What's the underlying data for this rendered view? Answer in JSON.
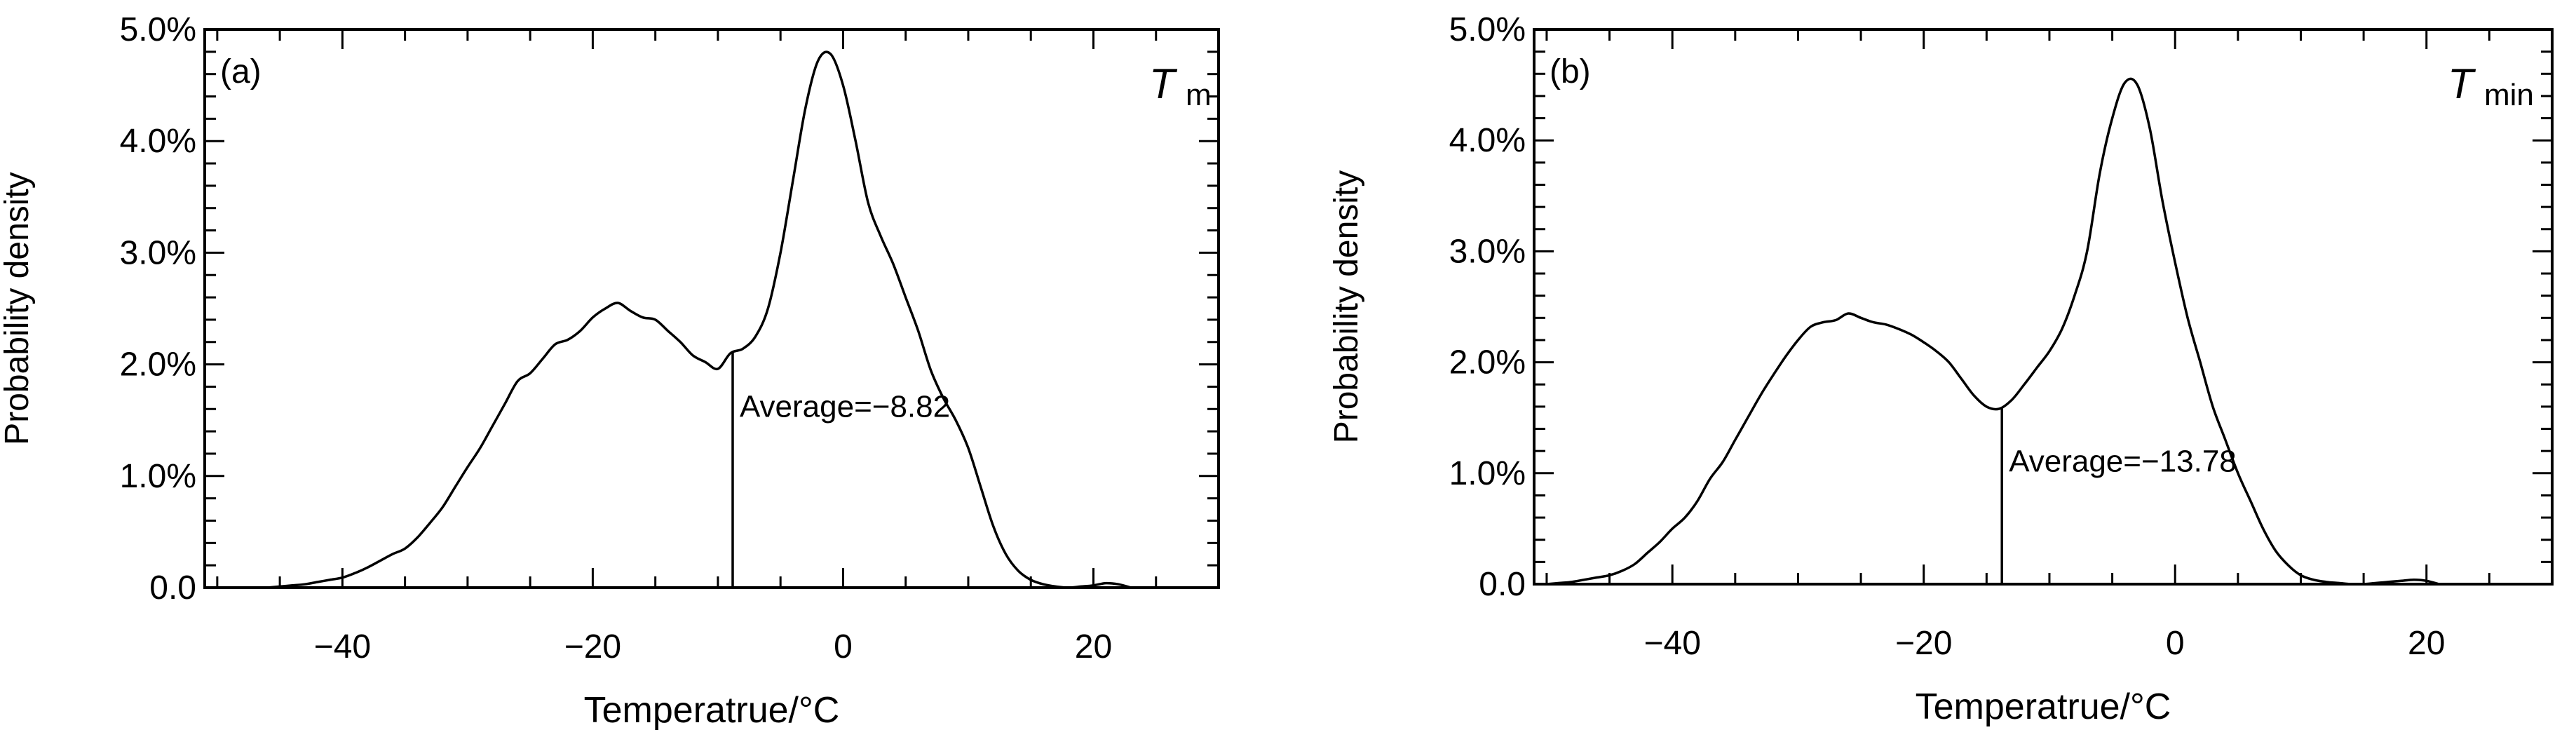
{
  "chart_data": [
    {
      "type": "line",
      "panel_label": "(a)",
      "symbol": "T",
      "symbol_sub": "m",
      "xlabel": "Temperatrue/°C",
      "ylabel": "Probability density",
      "xlim": [
        -51,
        30
      ],
      "ylim": [
        0,
        5.0
      ],
      "x_ticks": [
        -40,
        -20,
        0,
        20
      ],
      "x_tick_labels": [
        "−40",
        "−20",
        "0",
        "20"
      ],
      "y_ticks": [
        0,
        1,
        2,
        3,
        4,
        5
      ],
      "y_tick_labels": [
        "0.0",
        "1.0%",
        "2.0%",
        "3.0%",
        "4.0%",
        "5.0%"
      ],
      "average": -8.82,
      "average_label": "Average=−8.82",
      "series": [
        {
          "x": [
            -46,
            -45,
            -44,
            -43,
            -42,
            -41,
            -40,
            -39,
            -38,
            -37,
            -36,
            -35,
            -34,
            -33,
            -32,
            -31,
            -30,
            -29,
            -28,
            -27,
            -26,
            -25,
            -24,
            -23,
            -22,
            -21,
            -20,
            -19,
            -18,
            -17,
            -16,
            -15,
            -14,
            -13,
            -12,
            -11,
            -10,
            -9,
            -8,
            -7,
            -6,
            -5,
            -4,
            -3,
            -2,
            -1,
            0,
            1,
            2,
            3,
            4,
            5,
            6,
            7,
            8,
            9,
            10,
            11,
            12,
            13,
            14,
            15,
            16,
            17,
            18,
            19,
            20,
            21,
            22,
            23
          ],
          "y": [
            0.0,
            0.01,
            0.02,
            0.03,
            0.05,
            0.07,
            0.09,
            0.13,
            0.18,
            0.24,
            0.3,
            0.35,
            0.45,
            0.58,
            0.72,
            0.9,
            1.08,
            1.25,
            1.45,
            1.65,
            1.85,
            1.92,
            2.05,
            2.18,
            2.22,
            2.3,
            2.42,
            2.5,
            2.55,
            2.48,
            2.42,
            2.4,
            2.3,
            2.2,
            2.08,
            2.02,
            1.96,
            2.1,
            2.14,
            2.25,
            2.5,
            3.0,
            3.65,
            4.3,
            4.72,
            4.78,
            4.5,
            4.0,
            3.45,
            3.15,
            2.9,
            2.6,
            2.3,
            1.95,
            1.7,
            1.5,
            1.25,
            0.9,
            0.55,
            0.3,
            0.15,
            0.07,
            0.03,
            0.01,
            0.0,
            0.01,
            0.02,
            0.04,
            0.03,
            0.0
          ]
        }
      ]
    },
    {
      "type": "line",
      "panel_label": "(b)",
      "symbol": "T",
      "symbol_sub": "min",
      "xlabel": "Temperatrue/°C",
      "ylabel": "Probability density",
      "xlim": [
        -51,
        30
      ],
      "ylim": [
        0,
        5.0
      ],
      "x_ticks": [
        -40,
        -20,
        0,
        20
      ],
      "x_tick_labels": [
        "−40",
        "−20",
        "0",
        "20"
      ],
      "y_ticks": [
        0,
        1,
        2,
        3,
        4,
        5
      ],
      "y_tick_labels": [
        "0.0",
        "1.0%",
        "2.0%",
        "3.0%",
        "4.0%",
        "5.0%"
      ],
      "average": -13.78,
      "average_label": "Average=−13.78",
      "series": [
        {
          "x": [
            -50,
            -49,
            -48,
            -47,
            -46,
            -45,
            -44,
            -43,
            -42,
            -41,
            -40,
            -39,
            -38,
            -37,
            -36,
            -35,
            -34,
            -33,
            -32,
            -31,
            -30,
            -29,
            -28,
            -27,
            -26,
            -25,
            -24,
            -23,
            -22,
            -21,
            -20,
            -19,
            -18,
            -17,
            -16,
            -15,
            -14,
            -13,
            -12,
            -11,
            -10,
            -9,
            -8,
            -7,
            -6,
            -5,
            -4,
            -3,
            -2,
            -1,
            0,
            1,
            2,
            3,
            4,
            5,
            6,
            7,
            8,
            9,
            10,
            11,
            12,
            13,
            14,
            15,
            16,
            17,
            18,
            19,
            20,
            21
          ],
          "y": [
            0.0,
            0.01,
            0.02,
            0.04,
            0.06,
            0.08,
            0.12,
            0.18,
            0.28,
            0.38,
            0.5,
            0.6,
            0.75,
            0.95,
            1.1,
            1.3,
            1.5,
            1.7,
            1.88,
            2.05,
            2.2,
            2.32,
            2.36,
            2.38,
            2.44,
            2.4,
            2.36,
            2.34,
            2.3,
            2.25,
            2.18,
            2.1,
            2.0,
            1.85,
            1.7,
            1.6,
            1.58,
            1.66,
            1.8,
            1.95,
            2.1,
            2.3,
            2.6,
            3.0,
            3.7,
            4.2,
            4.52,
            4.5,
            4.1,
            3.45,
            2.9,
            2.4,
            2.0,
            1.6,
            1.3,
            1.0,
            0.75,
            0.5,
            0.3,
            0.17,
            0.08,
            0.04,
            0.02,
            0.01,
            0.0,
            0.0,
            0.01,
            0.02,
            0.03,
            0.04,
            0.03,
            0.0
          ]
        }
      ]
    }
  ]
}
